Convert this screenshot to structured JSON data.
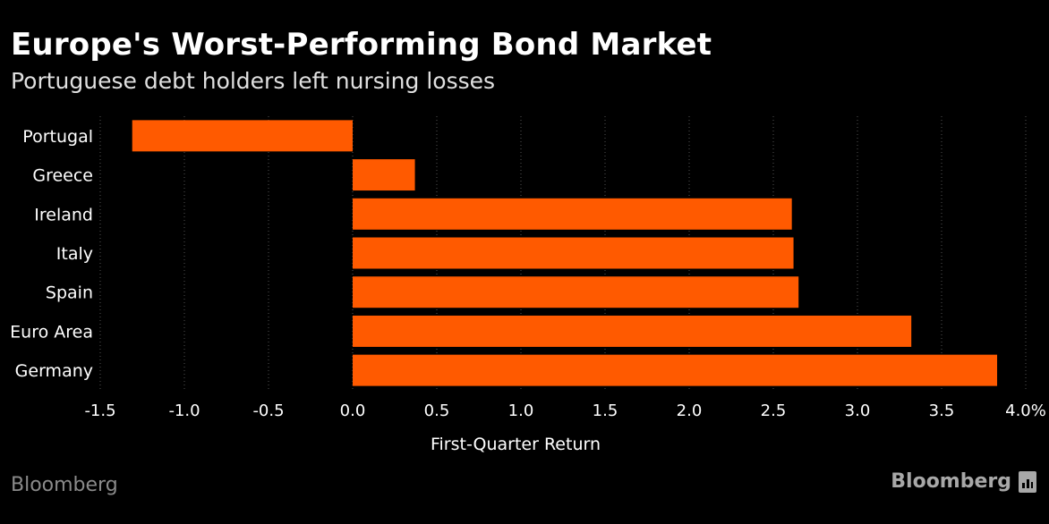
{
  "header": {
    "title": "Europe's Worst-Performing Bond Market",
    "subtitle": "Portuguese debt holders left nursing losses"
  },
  "footer": {
    "source_left": "Bloomberg",
    "brand_right": "Bloomberg",
    "brand_icon": "bloomberg-terminal-icon"
  },
  "colors": {
    "background": "#000000",
    "bar": "#ff5a00",
    "text": "#ffffff",
    "grid": "#555555",
    "footer": "#8a8a8a"
  },
  "chart_data": {
    "type": "bar",
    "orientation": "horizontal",
    "title": "Europe's Worst-Performing Bond Market",
    "subtitle": "Portuguese debt holders left nursing losses",
    "xlabel": "First-Quarter Return",
    "ylabel": "",
    "categories": [
      "Portugal",
      "Greece",
      "Ireland",
      "Italy",
      "Spain",
      "Euro Area",
      "Germany"
    ],
    "values": [
      -1.31,
      0.37,
      2.61,
      2.62,
      2.65,
      3.32,
      3.83
    ],
    "xlim": [
      -1.5,
      4.0
    ],
    "xticks": [
      -1.5,
      -1.0,
      -0.5,
      0.0,
      0.5,
      1.0,
      1.5,
      2.0,
      2.5,
      3.0,
      3.5,
      4.0
    ],
    "xtick_labels": [
      "-1.5",
      "-1.0",
      "-0.5",
      "0.0",
      "0.5",
      "1.0",
      "1.5",
      "2.0",
      "2.5",
      "3.0",
      "3.5",
      "4.0%"
    ],
    "grid": "vertical dotted",
    "legend": "none"
  }
}
